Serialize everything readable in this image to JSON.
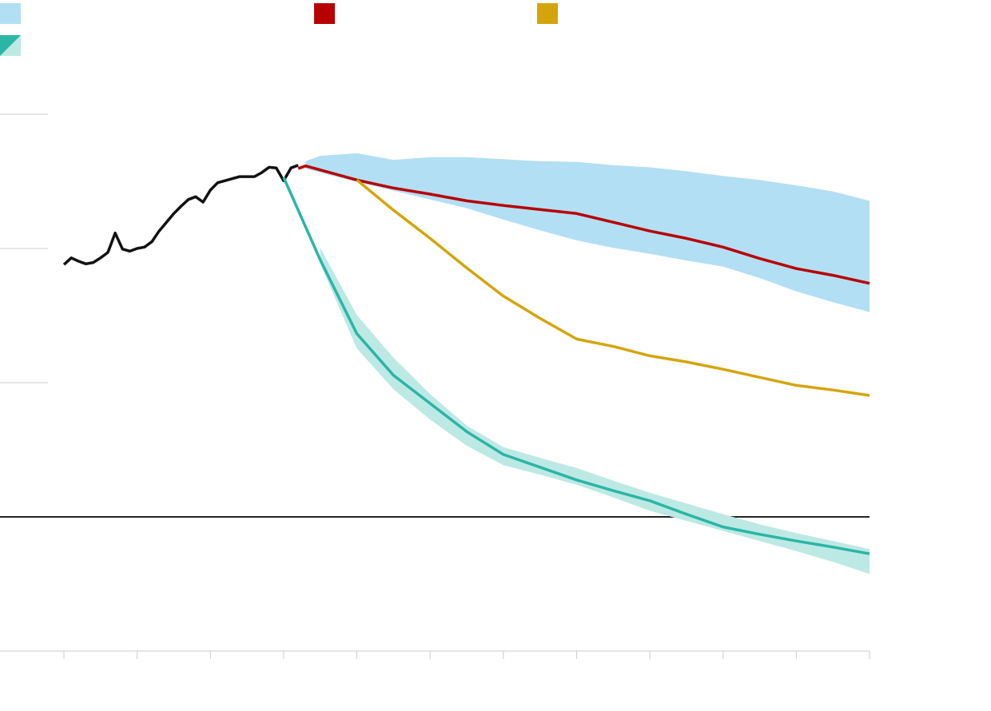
{
  "chart_data": {
    "type": "line",
    "xlim": [
      1990,
      2100
    ],
    "xticks": [
      1990,
      2000,
      2010,
      2020,
      2030,
      2040,
      2050,
      2060,
      2070,
      2080,
      2090,
      2100
    ],
    "ylim": [
      -20,
      65
    ],
    "yticks": [
      0,
      20,
      40,
      60
    ],
    "grid": true,
    "series": [
      {
        "color": "#111111",
        "x": [
          1990,
          1991,
          1992,
          1993,
          1994,
          1995,
          1996,
          1997,
          1998,
          1999,
          2000,
          2001,
          2002,
          2003,
          2004,
          2005,
          2006,
          2007,
          2008,
          2009,
          2010,
          2011,
          2012,
          2013,
          2014,
          2015,
          2016,
          2017,
          2018,
          2019,
          2020,
          2021,
          2022
        ],
        "values": [
          37.6,
          38.6,
          38.1,
          37.7,
          37.9,
          38.6,
          39.4,
          42.3,
          39.9,
          39.6,
          40.0,
          40.2,
          41.0,
          42.6,
          43.9,
          45.2,
          46.3,
          47.3,
          47.7,
          46.9,
          48.7,
          49.8,
          50.1,
          50.4,
          50.7,
          50.7,
          50.7,
          51.3,
          52.1,
          52.0,
          50.1,
          52.0,
          52.4
        ]
      },
      {
        "color": "#b80000",
        "x": [
          2022,
          2023,
          2025,
          2030,
          2035,
          2040,
          2045,
          2050,
          2055,
          2060,
          2065,
          2070,
          2075,
          2080,
          2085,
          2090,
          2095,
          2100
        ],
        "values": [
          51.9,
          52.3,
          51.7,
          50.2,
          49.0,
          48.1,
          47.1,
          46.4,
          45.8,
          45.2,
          43.9,
          42.6,
          41.5,
          40.2,
          38.5,
          37.0,
          36.0,
          34.8
        ]
      },
      {
        "color": "#d4a50a",
        "x": [
          2030,
          2035,
          2040,
          2045,
          2050,
          2055,
          2060,
          2065,
          2070,
          2075,
          2080,
          2085,
          2090,
          2095,
          2100
        ],
        "values": [
          50.2,
          45.7,
          41.5,
          37.1,
          32.9,
          29.6,
          26.5,
          25.4,
          24.0,
          23.1,
          22.0,
          20.8,
          19.6,
          18.9,
          18.1
        ]
      },
      {
        "color": "#2bb5a6",
        "x": [
          2020,
          2025,
          2030,
          2035,
          2040,
          2045,
          2050,
          2055,
          2060,
          2065,
          2070,
          2075,
          2080,
          2085,
          2090,
          2095,
          2100
        ],
        "values": [
          50.6,
          38.3,
          27.3,
          21.1,
          16.9,
          12.7,
          9.3,
          7.4,
          5.5,
          3.9,
          2.4,
          0.4,
          -1.5,
          -2.6,
          -3.6,
          -4.5,
          -5.5
        ]
      }
    ],
    "bands": [
      {
        "color": "#b3dff4",
        "x": [
          2023,
          2025,
          2030,
          2035,
          2040,
          2045,
          2050,
          2055,
          2060,
          2065,
          2070,
          2075,
          2080,
          2085,
          2090,
          2095,
          2100
        ],
        "upper": [
          53.0,
          53.8,
          54.2,
          53.2,
          53.6,
          53.6,
          53.3,
          53.0,
          52.9,
          52.4,
          52.1,
          51.5,
          50.8,
          50.2,
          49.4,
          48.5,
          47.1
        ],
        "lower": [
          51.9,
          51.3,
          49.9,
          48.6,
          47.3,
          46.0,
          44.3,
          42.7,
          41.2,
          40.1,
          39.2,
          38.2,
          37.3,
          35.6,
          33.6,
          32.0,
          30.5
        ]
      },
      {
        "color": "#bde9e4",
        "x": [
          2025,
          2030,
          2035,
          2040,
          2045,
          2050,
          2055,
          2060,
          2065,
          2070,
          2075,
          2080,
          2085,
          2090,
          2095,
          2100
        ],
        "upper": [
          40.1,
          30.1,
          23.7,
          18.3,
          13.6,
          10.4,
          8.8,
          7.3,
          5.4,
          3.6,
          2.0,
          0.4,
          -1.1,
          -2.4,
          -3.6,
          -4.8
        ],
        "lower": [
          37.7,
          25.1,
          19.0,
          14.5,
          10.6,
          7.7,
          6.3,
          4.8,
          2.9,
          0.9,
          -0.6,
          -2.1,
          -3.6,
          -5.1,
          -6.7,
          -8.5
        ]
      }
    ]
  }
}
